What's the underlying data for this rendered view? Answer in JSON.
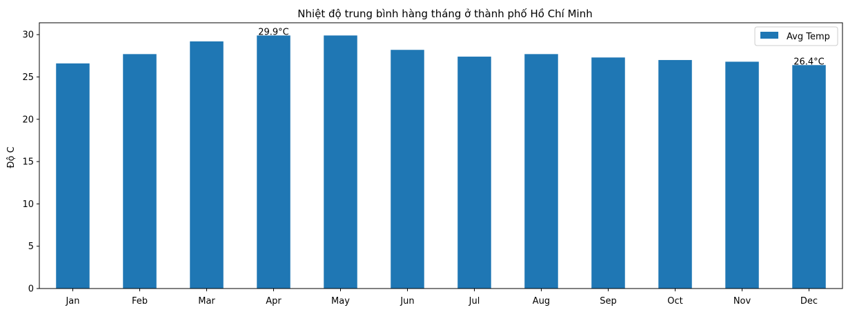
{
  "chart_data": {
    "type": "bar",
    "title": "Nhiệt độ trung bình hàng tháng ở thành phố Hồ Chí Minh",
    "xlabel": "",
    "ylabel": "Độ C",
    "categories": [
      "Jan",
      "Feb",
      "Mar",
      "Apr",
      "May",
      "Jun",
      "Jul",
      "Aug",
      "Sep",
      "Oct",
      "Nov",
      "Dec"
    ],
    "series": [
      {
        "name": "Avg Temp",
        "color": "#1f77b4",
        "values": [
          26.6,
          27.7,
          29.2,
          29.9,
          29.9,
          28.2,
          27.4,
          27.7,
          27.3,
          27.0,
          26.8,
          26.4
        ]
      }
    ],
    "ylim": [
      0,
      31.4
    ],
    "yticks": [
      0,
      5,
      10,
      15,
      20,
      25,
      30
    ],
    "annotations": [
      {
        "category": "Apr",
        "text": "29.9°C"
      },
      {
        "category": "Dec",
        "text": "26.4°C"
      }
    ],
    "legend": {
      "position": "top-right",
      "label": "Avg Temp"
    },
    "grid": false
  }
}
